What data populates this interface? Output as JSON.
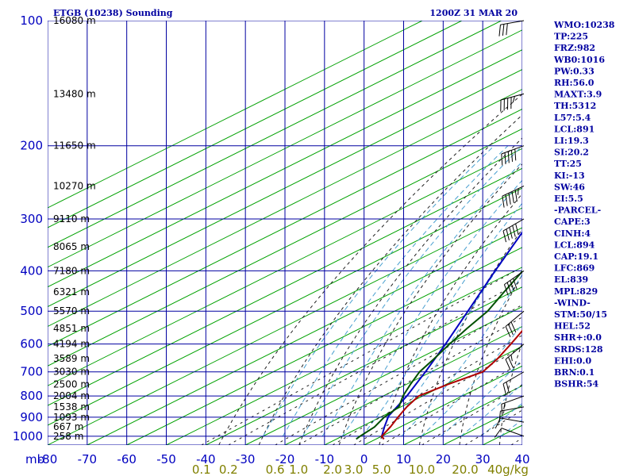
{
  "header": {
    "title": "ETGB (10238) Sounding",
    "time": "1200Z 31 MAR 20"
  },
  "indices": [
    "WMO:10238",
    "TP:225",
    "FRZ:982",
    "WB0:1016",
    "PW:0.33",
    "RH:56.0",
    "MAXT:3.9",
    "TH:5312",
    "L57:5.4",
    "LCL:891",
    "LI:19.3",
    "SI:20.2",
    "TT:25",
    "KI:-13",
    "SW:46",
    "EI:5.5",
    "-PARCEL-",
    "CAPE:3",
    "CINH:4",
    "LCL:894",
    "CAP:19.1",
    "LFC:869",
    "EL:839",
    "MPL:829",
    "-WIND-",
    "STM:50/15",
    "HEL:52",
    "SHR+:0.0",
    "SRDS:128",
    "EHI:0.0",
    "BRN:0.1",
    "BSHR:54"
  ],
  "colors": {
    "axes": "#0000a0",
    "isotherm": "#00a000",
    "dry_adiabat": "#202020",
    "moist_adiabat": "#4aa0d0",
    "temperature": "#b00000",
    "dewpoint": "#005000",
    "parcel": "#0000c0"
  },
  "chart_data": {
    "type": "skew-t",
    "pressure_levels_hPa": [
      100,
      200,
      300,
      400,
      500,
      600,
      700,
      800,
      900,
      1000
    ],
    "pressure_unit_label": "mb",
    "height_labels": [
      {
        "p": 100,
        "label": "16080 m"
      },
      {
        "p": 150,
        "label": "13480 m"
      },
      {
        "p": 200,
        "label": "11650 m"
      },
      {
        "p": 250,
        "label": "10270 m"
      },
      {
        "p": 300,
        "label": "9110 m"
      },
      {
        "p": 350,
        "label": "8065 m"
      },
      {
        "p": 400,
        "label": "7180 m"
      },
      {
        "p": 450,
        "label": "6321 m"
      },
      {
        "p": 500,
        "label": "5570 m"
      },
      {
        "p": 550,
        "label": "4851 m"
      },
      {
        "p": 600,
        "label": "4194 m"
      },
      {
        "p": 650,
        "label": "3589 m"
      },
      {
        "p": 700,
        "label": "3030 m"
      },
      {
        "p": 750,
        "label": "2500 m"
      },
      {
        "p": 800,
        "label": "2004 m"
      },
      {
        "p": 850,
        "label": "1538 m"
      },
      {
        "p": 900,
        "label": "1093 m"
      },
      {
        "p": 950,
        "label": "667 m"
      },
      {
        "p": 1000,
        "label": "258 m"
      }
    ],
    "x_ticks_C": [
      -80,
      -70,
      -60,
      -50,
      -40,
      -30,
      -20,
      -10,
      0,
      10,
      20,
      30,
      40
    ],
    "mixing_ratio_labels": [
      "0.1",
      "0.2",
      "0.6",
      "1.0",
      "2.0",
      "3.0",
      "5.0",
      "10.0",
      "20.0",
      "40g/kg"
    ],
    "temperature": [
      {
        "p": 1016,
        "t": 2.0
      },
      {
        "p": 1000,
        "t": 0.0
      },
      {
        "p": 950,
        "t": -2.5
      },
      {
        "p": 900,
        "t": -5.5
      },
      {
        "p": 850,
        "t": -8.5
      },
      {
        "p": 800,
        "t": -11.0
      },
      {
        "p": 750,
        "t": -9.5
      },
      {
        "p": 700,
        "t": -7.0
      },
      {
        "p": 650,
        "t": -10.0
      },
      {
        "p": 600,
        "t": -14.0
      },
      {
        "p": 550,
        "t": -18.5
      },
      {
        "p": 500,
        "t": -22.5
      },
      {
        "p": 450,
        "t": -28.0
      },
      {
        "p": 400,
        "t": -33.0
      },
      {
        "p": 350,
        "t": -39.5
      },
      {
        "p": 300,
        "t": -46.5
      },
      {
        "p": 250,
        "t": -54.0
      },
      {
        "p": 225,
        "t": -58.0
      },
      {
        "p": 200,
        "t": -56.5
      },
      {
        "p": 150,
        "t": -54.5
      },
      {
        "p": 100,
        "t": -57.0
      }
    ],
    "dewpoint": [
      {
        "p": 1016,
        "t": -5.0
      },
      {
        "p": 1000,
        "t": -5.5
      },
      {
        "p": 950,
        "t": -6.5
      },
      {
        "p": 900,
        "t": -9.0
      },
      {
        "p": 850,
        "t": -10.5
      },
      {
        "p": 800,
        "t": -15.0
      },
      {
        "p": 750,
        "t": -19.0
      },
      {
        "p": 700,
        "t": -23.0
      },
      {
        "p": 650,
        "t": -26.0
      },
      {
        "p": 600,
        "t": -29.5
      },
      {
        "p": 550,
        "t": -33.0
      },
      {
        "p": 500,
        "t": -36.5
      },
      {
        "p": 450,
        "t": -42.0
      },
      {
        "p": 400,
        "t": -48.0
      },
      {
        "p": 350,
        "t": -58.0
      },
      {
        "p": 300,
        "t": -67.0
      },
      {
        "p": 250,
        "t": -76.0
      },
      {
        "p": 225,
        "t": -82.0
      }
    ],
    "parcel": [
      {
        "p": 1016,
        "t": 2.0
      },
      {
        "p": 1000,
        "t": 0.0
      },
      {
        "p": 950,
        "t": -4.0
      },
      {
        "p": 894,
        "t": -8.5
      },
      {
        "p": 850,
        "t": -11.0
      },
      {
        "p": 800,
        "t": -14.0
      },
      {
        "p": 700,
        "t": -21.5
      },
      {
        "p": 600,
        "t": -30.5
      },
      {
        "p": 500,
        "t": -41.5
      },
      {
        "p": 400,
        "t": -55.0
      },
      {
        "p": 300,
        "t": -72.0
      },
      {
        "p": 270,
        "t": -78.0
      }
    ],
    "wind_barbs": [
      {
        "p": 100,
        "dir": 260,
        "spd": 30
      },
      {
        "p": 150,
        "dir": 255,
        "spd": 45
      },
      {
        "p": 200,
        "dir": 250,
        "spd": 50
      },
      {
        "p": 250,
        "dir": 245,
        "spd": 55
      },
      {
        "p": 300,
        "dir": 240,
        "spd": 50
      },
      {
        "p": 400,
        "dir": 235,
        "spd": 40
      },
      {
        "p": 500,
        "dir": 230,
        "spd": 30
      },
      {
        "p": 600,
        "dir": 230,
        "spd": 25
      },
      {
        "p": 700,
        "dir": 240,
        "spd": 20
      },
      {
        "p": 800,
        "dir": 250,
        "spd": 15
      },
      {
        "p": 850,
        "dir": 260,
        "spd": 10
      },
      {
        "p": 925,
        "dir": 280,
        "spd": 10
      },
      {
        "p": 1000,
        "dir": 290,
        "spd": 10
      }
    ]
  }
}
